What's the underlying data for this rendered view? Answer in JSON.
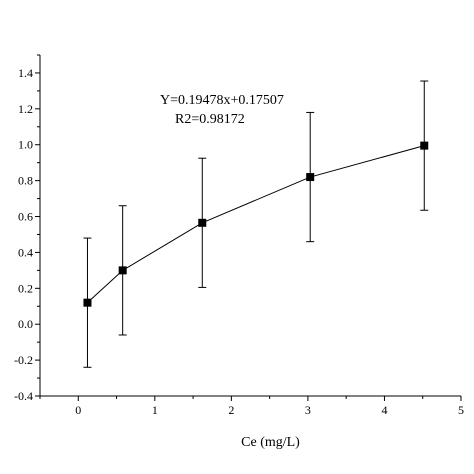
{
  "chart_data": {
    "type": "scatter",
    "title": "",
    "xlabel": "Ce (mg/L)",
    "ylabel": "",
    "xlim": [
      -0.5,
      5
    ],
    "ylim": [
      -0.4,
      1.5
    ],
    "xticks": [
      0,
      1,
      2,
      3,
      4,
      5
    ],
    "yticks": [
      -0.4,
      -0.2,
      0.0,
      0.2,
      0.4,
      0.6,
      0.8,
      1.0,
      1.2,
      1.4
    ],
    "ytick_labels": [
      "-0.4",
      "-0.2",
      "0.0",
      "0.2",
      "0.4",
      "0.6",
      "0.8",
      "1.0",
      "1.2",
      "1.4"
    ],
    "grid": false,
    "series": [
      {
        "x": [
          0.12,
          0.58,
          1.62,
          3.03,
          4.52
        ],
        "y": [
          0.12,
          0.3,
          0.565,
          0.82,
          0.995
        ],
        "error": [
          0.36,
          0.36,
          0.36,
          0.36,
          0.36
        ],
        "marker": "square",
        "line": true,
        "color": "#000000"
      }
    ],
    "annotations": [
      "Y=0.19478x+0.17507",
      "R2=0.98172"
    ]
  }
}
